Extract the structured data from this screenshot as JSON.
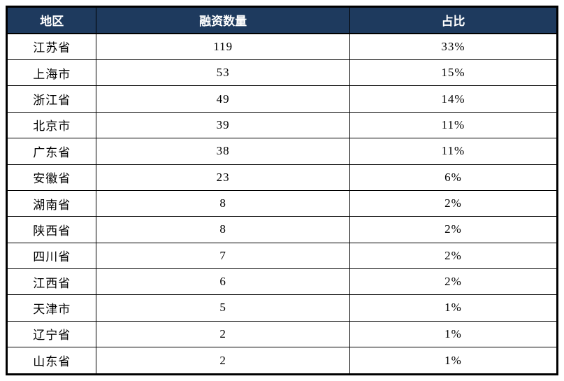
{
  "chart_data": {
    "type": "table",
    "columns": [
      "地区",
      "融资数量",
      "占比"
    ],
    "rows": [
      [
        "江苏省",
        119,
        "33%"
      ],
      [
        "上海市",
        53,
        "15%"
      ],
      [
        "浙江省",
        49,
        "14%"
      ],
      [
        "北京市",
        39,
        "11%"
      ],
      [
        "广东省",
        38,
        "11%"
      ],
      [
        "安徽省",
        23,
        "6%"
      ],
      [
        "湖南省",
        8,
        "2%"
      ],
      [
        "陕西省",
        8,
        "2%"
      ],
      [
        "四川省",
        7,
        "2%"
      ],
      [
        "江西省",
        6,
        "2%"
      ],
      [
        "天津市",
        5,
        "1%"
      ],
      [
        "辽宁省",
        2,
        "1%"
      ],
      [
        "山东省",
        2,
        "1%"
      ]
    ]
  },
  "colors": {
    "header_bg": "#1e3a5e",
    "header_text": "#ffffff",
    "body_text": "#000000",
    "border": "#000000",
    "row_bg": "#ffffff"
  }
}
